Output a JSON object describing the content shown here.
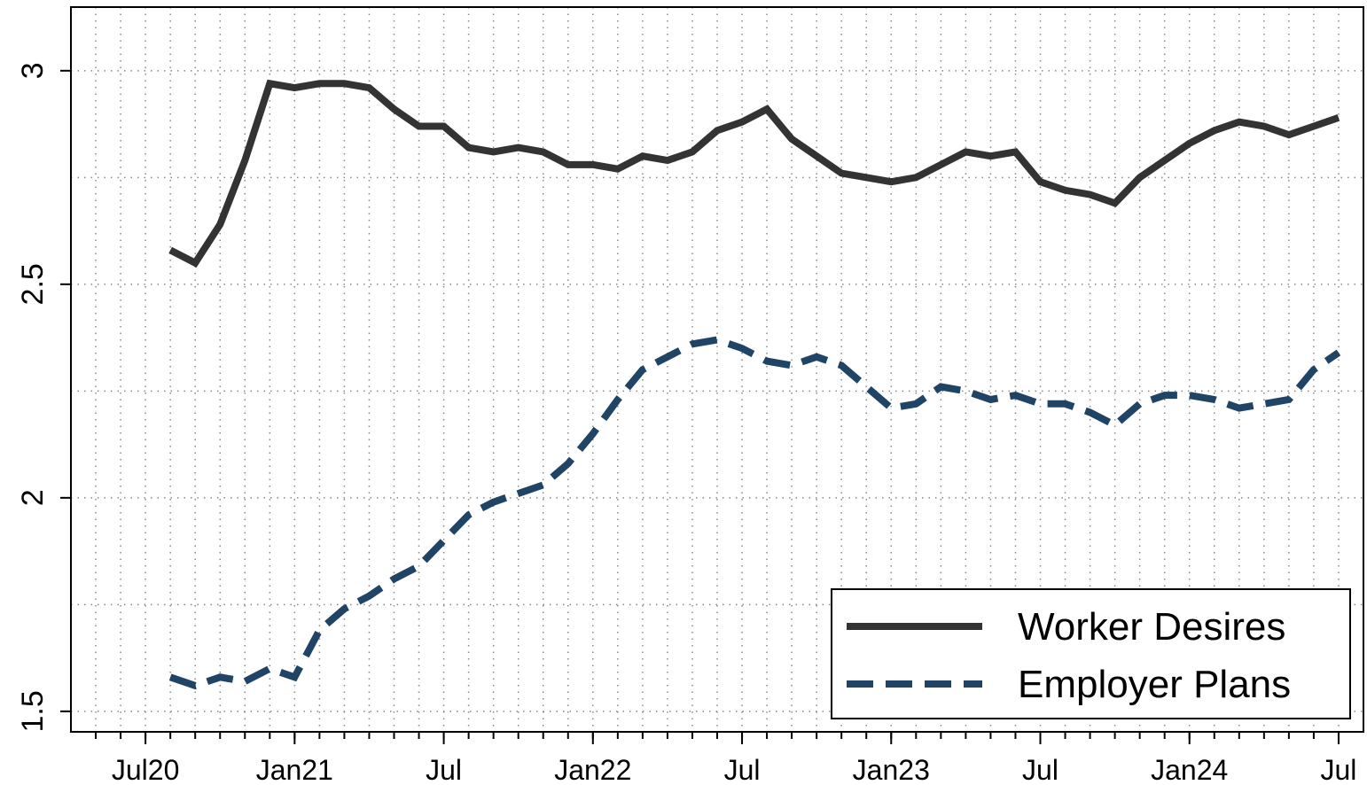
{
  "chart_data": {
    "type": "line",
    "x": [
      "2020-08",
      "2020-09",
      "2020-10",
      "2020-11",
      "2020-12",
      "2021-01",
      "2021-02",
      "2021-03",
      "2021-04",
      "2021-05",
      "2021-06",
      "2021-07",
      "2021-08",
      "2021-09",
      "2021-10",
      "2021-11",
      "2021-12",
      "2022-01",
      "2022-02",
      "2022-03",
      "2022-04",
      "2022-05",
      "2022-06",
      "2022-07",
      "2022-08",
      "2022-09",
      "2022-10",
      "2022-11",
      "2022-12",
      "2023-01",
      "2023-02",
      "2023-03",
      "2023-04",
      "2023-05",
      "2023-06",
      "2023-07",
      "2023-08",
      "2023-09",
      "2023-10",
      "2023-11",
      "2023-12",
      "2024-01",
      "2024-02",
      "2024-03",
      "2024-04",
      "2024-05",
      "2024-06",
      "2024-07"
    ],
    "series": [
      {
        "name": "Worker Desires",
        "color": "#333333",
        "dash": "solid",
        "values": [
          2.58,
          2.55,
          2.64,
          2.79,
          2.97,
          2.96,
          2.97,
          2.97,
          2.96,
          2.91,
          2.87,
          2.87,
          2.82,
          2.81,
          2.82,
          2.81,
          2.78,
          2.78,
          2.77,
          2.8,
          2.79,
          2.81,
          2.86,
          2.88,
          2.91,
          2.84,
          2.8,
          2.76,
          2.75,
          2.74,
          2.75,
          2.78,
          2.81,
          2.8,
          2.81,
          2.74,
          2.72,
          2.71,
          2.69,
          2.75,
          2.79,
          2.83,
          2.86,
          2.88,
          2.87,
          2.85,
          2.87,
          2.89
        ]
      },
      {
        "name": "Employer Plans",
        "color": "#1f4466",
        "dash": "dashed",
        "values": [
          1.58,
          1.56,
          1.58,
          1.57,
          1.6,
          1.58,
          1.69,
          1.74,
          1.77,
          1.81,
          1.84,
          1.9,
          1.96,
          1.99,
          2.01,
          2.03,
          2.08,
          2.15,
          2.23,
          2.3,
          2.33,
          2.36,
          2.37,
          2.35,
          2.32,
          2.31,
          2.33,
          2.31,
          2.26,
          2.21,
          2.22,
          2.26,
          2.25,
          2.23,
          2.24,
          2.22,
          2.22,
          2.2,
          2.17,
          2.22,
          2.24,
          2.24,
          2.23,
          2.21,
          2.22,
          2.23,
          2.3,
          2.34
        ]
      }
    ],
    "xlim": [
      "2020-04",
      "2024-08"
    ],
    "xticks": [
      {
        "value": "2020-07",
        "label": "Jul20"
      },
      {
        "value": "2021-01",
        "label": "Jan21"
      },
      {
        "value": "2021-07",
        "label": "Jul"
      },
      {
        "value": "2022-01",
        "label": "Jan22"
      },
      {
        "value": "2022-07",
        "label": "Jul"
      },
      {
        "value": "2023-01",
        "label": "Jan23"
      },
      {
        "value": "2023-07",
        "label": "Jul"
      },
      {
        "value": "2024-01",
        "label": "Jan24"
      },
      {
        "value": "2024-07",
        "label": "Jul"
      }
    ],
    "ylim": [
      1.452,
      3.149
    ],
    "yticks": [
      1.5,
      2,
      2.5,
      3
    ],
    "ygrid": [
      1.5,
      1.75,
      2,
      2.25,
      2.5,
      2.75,
      3
    ],
    "grid": true,
    "legend": "lower right"
  }
}
